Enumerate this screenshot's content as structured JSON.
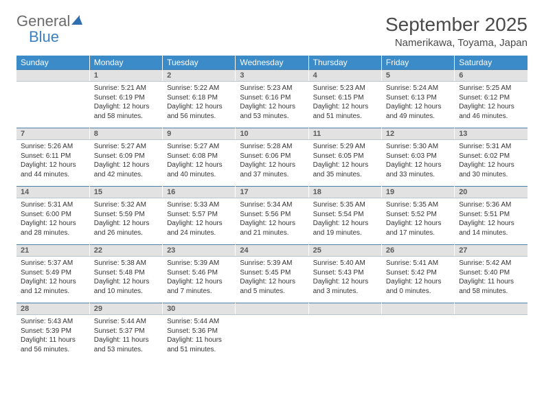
{
  "brand": {
    "word1": "General",
    "word2": "Blue",
    "color_general": "#6b6b6b",
    "color_blue": "#3b7fc4",
    "icon_fill": "#2f6fb0"
  },
  "title": "September 2025",
  "location": "Namerikawa, Toyama, Japan",
  "styling": {
    "header_bg": "#3b8bc9",
    "header_text": "#ffffff",
    "daynum_bg": "#e2e2e2",
    "daynum_text": "#5a5a5a",
    "daynum_border_top": "#4a7fa8",
    "body_text": "#333333",
    "page_bg": "#ffffff",
    "title_fontsize": 28,
    "location_fontsize": 15,
    "dow_fontsize": 12,
    "daynum_fontsize": 11,
    "cell_fontsize": 10,
    "columns": 7
  },
  "days_of_week": [
    "Sunday",
    "Monday",
    "Tuesday",
    "Wednesday",
    "Thursday",
    "Friday",
    "Saturday"
  ],
  "weeks": [
    {
      "nums": [
        "",
        "1",
        "2",
        "3",
        "4",
        "5",
        "6"
      ],
      "cells": [
        {
          "lines": []
        },
        {
          "lines": [
            "Sunrise: 5:21 AM",
            "Sunset: 6:19 PM",
            "Daylight: 12 hours",
            "and 58 minutes."
          ]
        },
        {
          "lines": [
            "Sunrise: 5:22 AM",
            "Sunset: 6:18 PM",
            "Daylight: 12 hours",
            "and 56 minutes."
          ]
        },
        {
          "lines": [
            "Sunrise: 5:23 AM",
            "Sunset: 6:16 PM",
            "Daylight: 12 hours",
            "and 53 minutes."
          ]
        },
        {
          "lines": [
            "Sunrise: 5:23 AM",
            "Sunset: 6:15 PM",
            "Daylight: 12 hours",
            "and 51 minutes."
          ]
        },
        {
          "lines": [
            "Sunrise: 5:24 AM",
            "Sunset: 6:13 PM",
            "Daylight: 12 hours",
            "and 49 minutes."
          ]
        },
        {
          "lines": [
            "Sunrise: 5:25 AM",
            "Sunset: 6:12 PM",
            "Daylight: 12 hours",
            "and 46 minutes."
          ]
        }
      ]
    },
    {
      "nums": [
        "7",
        "8",
        "9",
        "10",
        "11",
        "12",
        "13"
      ],
      "cells": [
        {
          "lines": [
            "Sunrise: 5:26 AM",
            "Sunset: 6:11 PM",
            "Daylight: 12 hours",
            "and 44 minutes."
          ]
        },
        {
          "lines": [
            "Sunrise: 5:27 AM",
            "Sunset: 6:09 PM",
            "Daylight: 12 hours",
            "and 42 minutes."
          ]
        },
        {
          "lines": [
            "Sunrise: 5:27 AM",
            "Sunset: 6:08 PM",
            "Daylight: 12 hours",
            "and 40 minutes."
          ]
        },
        {
          "lines": [
            "Sunrise: 5:28 AM",
            "Sunset: 6:06 PM",
            "Daylight: 12 hours",
            "and 37 minutes."
          ]
        },
        {
          "lines": [
            "Sunrise: 5:29 AM",
            "Sunset: 6:05 PM",
            "Daylight: 12 hours",
            "and 35 minutes."
          ]
        },
        {
          "lines": [
            "Sunrise: 5:30 AM",
            "Sunset: 6:03 PM",
            "Daylight: 12 hours",
            "and 33 minutes."
          ]
        },
        {
          "lines": [
            "Sunrise: 5:31 AM",
            "Sunset: 6:02 PM",
            "Daylight: 12 hours",
            "and 30 minutes."
          ]
        }
      ]
    },
    {
      "nums": [
        "14",
        "15",
        "16",
        "17",
        "18",
        "19",
        "20"
      ],
      "cells": [
        {
          "lines": [
            "Sunrise: 5:31 AM",
            "Sunset: 6:00 PM",
            "Daylight: 12 hours",
            "and 28 minutes."
          ]
        },
        {
          "lines": [
            "Sunrise: 5:32 AM",
            "Sunset: 5:59 PM",
            "Daylight: 12 hours",
            "and 26 minutes."
          ]
        },
        {
          "lines": [
            "Sunrise: 5:33 AM",
            "Sunset: 5:57 PM",
            "Daylight: 12 hours",
            "and 24 minutes."
          ]
        },
        {
          "lines": [
            "Sunrise: 5:34 AM",
            "Sunset: 5:56 PM",
            "Daylight: 12 hours",
            "and 21 minutes."
          ]
        },
        {
          "lines": [
            "Sunrise: 5:35 AM",
            "Sunset: 5:54 PM",
            "Daylight: 12 hours",
            "and 19 minutes."
          ]
        },
        {
          "lines": [
            "Sunrise: 5:35 AM",
            "Sunset: 5:52 PM",
            "Daylight: 12 hours",
            "and 17 minutes."
          ]
        },
        {
          "lines": [
            "Sunrise: 5:36 AM",
            "Sunset: 5:51 PM",
            "Daylight: 12 hours",
            "and 14 minutes."
          ]
        }
      ]
    },
    {
      "nums": [
        "21",
        "22",
        "23",
        "24",
        "25",
        "26",
        "27"
      ],
      "cells": [
        {
          "lines": [
            "Sunrise: 5:37 AM",
            "Sunset: 5:49 PM",
            "Daylight: 12 hours",
            "and 12 minutes."
          ]
        },
        {
          "lines": [
            "Sunrise: 5:38 AM",
            "Sunset: 5:48 PM",
            "Daylight: 12 hours",
            "and 10 minutes."
          ]
        },
        {
          "lines": [
            "Sunrise: 5:39 AM",
            "Sunset: 5:46 PM",
            "Daylight: 12 hours",
            "and 7 minutes."
          ]
        },
        {
          "lines": [
            "Sunrise: 5:39 AM",
            "Sunset: 5:45 PM",
            "Daylight: 12 hours",
            "and 5 minutes."
          ]
        },
        {
          "lines": [
            "Sunrise: 5:40 AM",
            "Sunset: 5:43 PM",
            "Daylight: 12 hours",
            "and 3 minutes."
          ]
        },
        {
          "lines": [
            "Sunrise: 5:41 AM",
            "Sunset: 5:42 PM",
            "Daylight: 12 hours",
            "and 0 minutes."
          ]
        },
        {
          "lines": [
            "Sunrise: 5:42 AM",
            "Sunset: 5:40 PM",
            "Daylight: 11 hours",
            "and 58 minutes."
          ]
        }
      ]
    },
    {
      "nums": [
        "28",
        "29",
        "30",
        "",
        "",
        "",
        ""
      ],
      "cells": [
        {
          "lines": [
            "Sunrise: 5:43 AM",
            "Sunset: 5:39 PM",
            "Daylight: 11 hours",
            "and 56 minutes."
          ]
        },
        {
          "lines": [
            "Sunrise: 5:44 AM",
            "Sunset: 5:37 PM",
            "Daylight: 11 hours",
            "and 53 minutes."
          ]
        },
        {
          "lines": [
            "Sunrise: 5:44 AM",
            "Sunset: 5:36 PM",
            "Daylight: 11 hours",
            "and 51 minutes."
          ]
        },
        {
          "lines": []
        },
        {
          "lines": []
        },
        {
          "lines": []
        },
        {
          "lines": []
        }
      ]
    }
  ]
}
